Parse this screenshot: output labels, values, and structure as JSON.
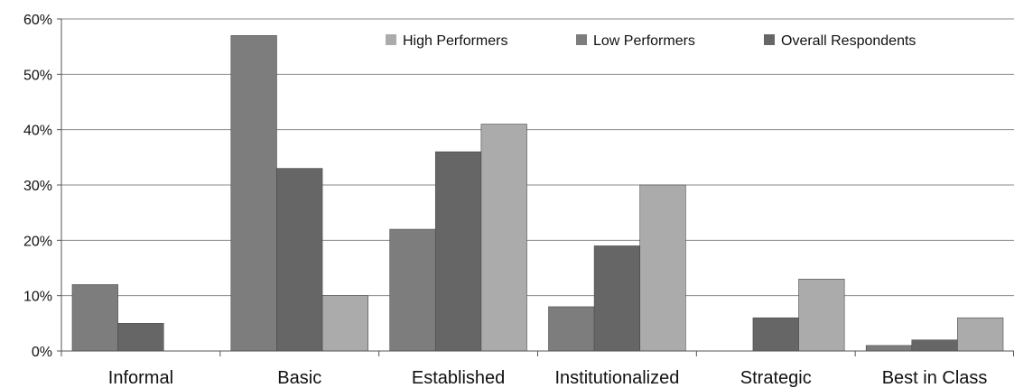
{
  "chart_data": {
    "type": "bar",
    "categories": [
      "Informal",
      "Basic",
      "Established",
      "Institutionalized",
      "Strategic",
      "Best in Class"
    ],
    "series": [
      {
        "name": "Low Performers",
        "values": [
          12,
          57,
          22,
          8,
          0,
          1
        ],
        "color": "#7d7d7d"
      },
      {
        "name": "Overall Respondents",
        "values": [
          5,
          33,
          36,
          19,
          6,
          2
        ],
        "color": "#666666"
      },
      {
        "name": "High Performers",
        "values": [
          0,
          10,
          41,
          30,
          13,
          6
        ],
        "color": "#ababab"
      }
    ],
    "legend_order": [
      "High Performers",
      "Low Performers",
      "Overall Respondents"
    ],
    "legend_position": "top-right, inside plot",
    "ylim": [
      0,
      60
    ],
    "yticks": [
      0,
      10,
      20,
      30,
      40,
      50,
      60
    ],
    "ytick_labels": [
      "0%",
      "10%",
      "20%",
      "30%",
      "40%",
      "50%",
      "60%"
    ],
    "grid": "horizontal",
    "title": "",
    "xlabel": "",
    "ylabel": ""
  }
}
